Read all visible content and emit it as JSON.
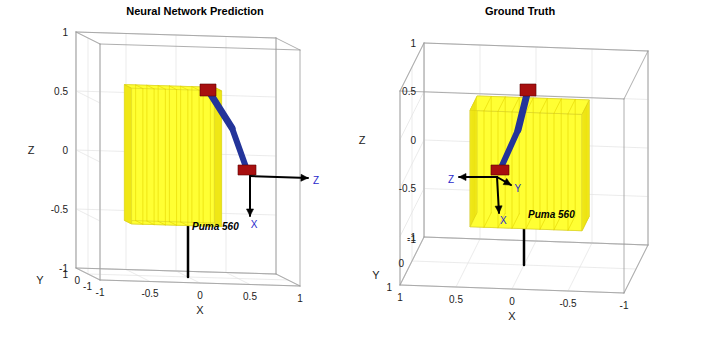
{
  "chart_data": [
    {
      "type": "scatter3d",
      "title": "Neural Network Prediction",
      "xlabel": "X",
      "ylabel": "Y",
      "zlabel": "Z",
      "xlim": [
        -1,
        1
      ],
      "ylim": [
        -1,
        1
      ],
      "zlim": [
        -1,
        1
      ],
      "xticks": [
        -1,
        -0.5,
        0,
        0.5,
        1
      ],
      "yticks": [
        -1,
        0,
        1
      ],
      "zticks": [
        -1,
        -0.5,
        0,
        0.5,
        1
      ],
      "grid": true,
      "color": "#ffff33",
      "box": {
        "x": [
          -0.6,
          0.3
        ],
        "y": [
          -0.3,
          0.3
        ],
        "z": [
          -0.55,
          0.6
        ]
      },
      "annotations": [
        "Puma 560",
        "Z",
        "X"
      ]
    },
    {
      "type": "scatter3d",
      "title": "Ground Truth",
      "xlabel": "X",
      "ylabel": "Y",
      "zlabel": "Z",
      "xlim": [
        -1,
        1
      ],
      "ylim": [
        -1,
        1
      ],
      "zlim": [
        -1,
        1
      ],
      "xticks": [
        -1,
        -0.5,
        0,
        0.5,
        1
      ],
      "yticks": [
        -1,
        0,
        1
      ],
      "zticks": [
        -1,
        -0.5,
        0,
        0.5,
        1
      ],
      "grid": true,
      "color": "#ffff33",
      "box": {
        "x": [
          -0.55,
          0.45
        ],
        "y": [
          -0.3,
          0.3
        ],
        "z": [
          -0.55,
          0.65
        ]
      },
      "annotations": [
        "Puma 560",
        "Z",
        "Y",
        "X"
      ]
    }
  ]
}
